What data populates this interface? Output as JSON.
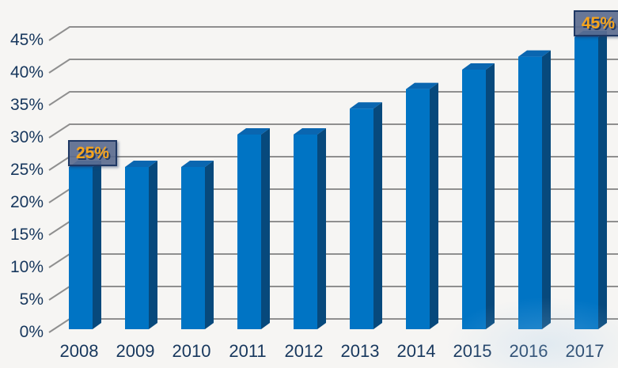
{
  "chart_data": {
    "type": "bar",
    "style": "3d-column",
    "title": "",
    "xlabel": "",
    "ylabel": "",
    "categories": [
      "2008",
      "2009",
      "2010",
      "2011",
      "2012",
      "2013",
      "2014",
      "2015",
      "2016",
      "2017"
    ],
    "values": [
      25,
      25,
      25,
      30,
      30,
      34,
      37,
      40,
      42,
      45
    ],
    "ylim": [
      0,
      45
    ],
    "ytick_step": 5,
    "yticks": [
      "0%",
      "5%",
      "10%",
      "15%",
      "20%",
      "25%",
      "30%",
      "35%",
      "40%",
      "45%"
    ],
    "grid": true,
    "legend": false,
    "data_labels": [
      {
        "category": "2008",
        "text": "25%"
      },
      {
        "category": "2017",
        "text": "45%"
      }
    ],
    "colors": {
      "background": "#f6f5f3",
      "gridline": "#8f8f8f",
      "axis_text": "#17375d",
      "bar_front": "#0074c4",
      "bar_top": "#0a66b0",
      "bar_side": "#07497c",
      "callout_bg": "#5b6b8f",
      "callout_border": "#1f3864",
      "callout_text": "#f9a51b"
    }
  }
}
